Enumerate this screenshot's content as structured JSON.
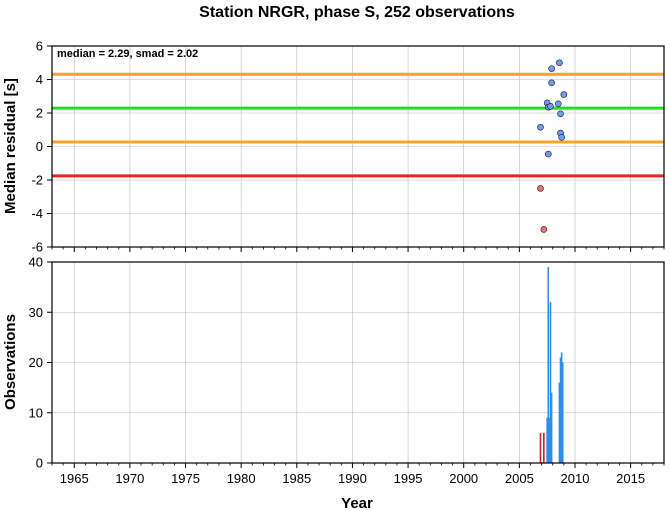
{
  "title": "Station NRGR, phase S, 252 observations",
  "xlabel": "Year",
  "colors": {
    "median_line": "#22dd22",
    "smad_line": "#f5a623",
    "threshold_line": "#e8231e",
    "point_ok": "#6f9cf0",
    "point_outlier": "#f07070",
    "bar_ok": "#2e8fea",
    "bar_outlier": "#cc1f2e"
  },
  "chart_data": [
    {
      "type": "scatter",
      "ylabel": "Median residual [s]",
      "annotation": "median = 2.29, smad = 2.02",
      "xlim": [
        1963,
        2018
      ],
      "ylim": [
        -6,
        6
      ],
      "x_ticks": [
        1965,
        1970,
        1975,
        1980,
        1985,
        1990,
        1995,
        2000,
        2005,
        2010,
        2015
      ],
      "y_ticks": [
        -6,
        -4,
        -2,
        0,
        2,
        4,
        6
      ],
      "grid": true,
      "hlines": [
        {
          "y": 4.31,
          "role": "upper-smad",
          "color": "#f5a623"
        },
        {
          "y": 2.29,
          "role": "median",
          "color": "#22dd22"
        },
        {
          "y": 0.27,
          "role": "lower-smad",
          "color": "#f5a623"
        },
        {
          "y": -1.75,
          "role": "threshold",
          "color": "#e8231e"
        }
      ],
      "points": [
        {
          "x": 2008.6,
          "y": 5.0,
          "outlier": false
        },
        {
          "x": 2007.9,
          "y": 4.65,
          "outlier": false
        },
        {
          "x": 2007.9,
          "y": 3.8,
          "outlier": false
        },
        {
          "x": 2009.0,
          "y": 3.1,
          "outlier": false
        },
        {
          "x": 2007.5,
          "y": 2.6,
          "outlier": false
        },
        {
          "x": 2008.5,
          "y": 2.55,
          "outlier": false
        },
        {
          "x": 2007.6,
          "y": 2.35,
          "outlier": false
        },
        {
          "x": 2007.8,
          "y": 2.4,
          "outlier": false
        },
        {
          "x": 2008.7,
          "y": 1.95,
          "outlier": false
        },
        {
          "x": 2006.9,
          "y": 1.15,
          "outlier": false
        },
        {
          "x": 2008.7,
          "y": 0.8,
          "outlier": false
        },
        {
          "x": 2008.8,
          "y": 0.55,
          "outlier": false
        },
        {
          "x": 2007.6,
          "y": -0.45,
          "outlier": false
        },
        {
          "x": 2006.9,
          "y": -2.5,
          "outlier": true
        },
        {
          "x": 2007.2,
          "y": -4.95,
          "outlier": true
        }
      ]
    },
    {
      "type": "bar",
      "ylabel": "Observations",
      "xlim": [
        1963,
        2018
      ],
      "ylim": [
        0,
        40
      ],
      "x_ticks": [
        1965,
        1970,
        1975,
        1980,
        1985,
        1990,
        1995,
        2000,
        2005,
        2010,
        2015
      ],
      "y_ticks": [
        0,
        10,
        20,
        30,
        40
      ],
      "grid": true,
      "bars": [
        {
          "x": 2006.9,
          "value": 6,
          "outlier": true
        },
        {
          "x": 2007.2,
          "value": 6,
          "outlier": true
        },
        {
          "x": 2007.5,
          "value": 9,
          "outlier": false
        },
        {
          "x": 2007.6,
          "value": 39,
          "outlier": false
        },
        {
          "x": 2007.7,
          "value": 9,
          "outlier": false
        },
        {
          "x": 2007.8,
          "value": 32,
          "outlier": false
        },
        {
          "x": 2007.9,
          "value": 14,
          "outlier": false
        },
        {
          "x": 2008.6,
          "value": 16,
          "outlier": false
        },
        {
          "x": 2008.7,
          "value": 21,
          "outlier": false
        },
        {
          "x": 2008.8,
          "value": 22,
          "outlier": false
        },
        {
          "x": 2008.9,
          "value": 20,
          "outlier": false
        }
      ]
    }
  ]
}
